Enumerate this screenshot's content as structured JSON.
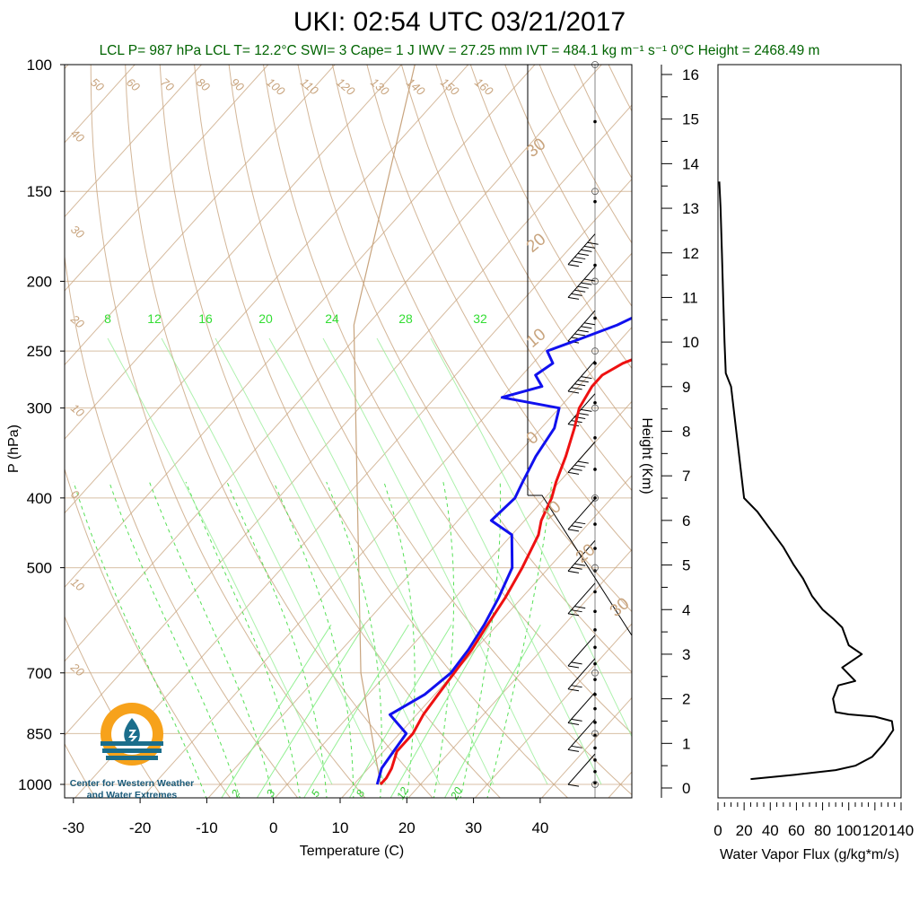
{
  "header": {
    "title": "UKI: 02:54 UTC 03/21/2017",
    "subtitle": "LCL P= 987 hPa  LCL T= 12.2°C  SWI= 3  Cape= 1 J  IWV = 27.25 mm  IVT = 484.1 kg m⁻¹ s⁻¹  0°C Height = 2468.49 m"
  },
  "logo": {
    "line1": "Center for Western Weather",
    "line2": "and Water Extremes"
  },
  "colors": {
    "temperature": "#ee1111",
    "dewpoint": "#1111ee",
    "isotherm_adiabat": "#c8a47e",
    "mixing_ratio": "#44dd44",
    "logo_orange": "#f7a21b",
    "logo_blue": "#1b6e8c"
  },
  "chart_data": [
    {
      "type": "line",
      "name": "skew-t",
      "xlabel": "Temperature (C)",
      "ylabel": "P (hPa)",
      "x_ticks": [
        -30,
        -20,
        -10,
        0,
        10,
        20,
        30,
        40
      ],
      "p_ticks": [
        100,
        150,
        200,
        250,
        300,
        400,
        500,
        700,
        850,
        1000
      ],
      "x_tick_labels": [
        "-30",
        "-20",
        "-10",
        "0",
        "10",
        "20",
        "30",
        "40"
      ],
      "p_tick_labels": [
        "100",
        "150",
        "200",
        "250",
        "300",
        "400",
        "500",
        "700",
        "850",
        "1000"
      ],
      "xlim": [
        -35,
        50
      ],
      "ylim": [
        1050,
        100
      ],
      "y_scale": "log",
      "mixing_ratio_labels": [
        "8",
        "12",
        "16",
        "20",
        "24",
        "28",
        "32"
      ],
      "mixing_ratio_low_labels": [
        "2",
        "3",
        "5",
        "8",
        "12",
        "20"
      ],
      "adiabat_labels_top": [
        "50",
        "60",
        "70",
        "80",
        "90",
        "100",
        "110",
        "120",
        "130",
        "140",
        "150",
        "160"
      ],
      "adiabat_labels_left": [
        "40",
        "30",
        "20",
        "10",
        "0",
        "10",
        "20"
      ],
      "adiabat_labels_right": [
        "30",
        "20",
        "10",
        "0",
        "10",
        "20",
        "30"
      ],
      "series": [
        {
          "name": "Temperature",
          "points": [
            [
              150,
              6.8
            ],
            [
              160,
              7.5
            ],
            [
              170,
              8.5
            ],
            [
              180,
              9.5
            ],
            [
              190,
              8.0
            ],
            [
              200,
              7.5
            ],
            [
              210,
              6.5
            ],
            [
              220,
              5.0
            ],
            [
              230,
              3.5
            ],
            [
              240,
              1.0
            ],
            [
              250,
              -3.5
            ],
            [
              260,
              -6.5
            ],
            [
              270,
              -8.0
            ],
            [
              280,
              -8.0
            ],
            [
              300,
              -7.0
            ],
            [
              320,
              -5.0
            ],
            [
              350,
              -2.5
            ],
            [
              380,
              -0.5
            ],
            [
              400,
              1.0
            ],
            [
              430,
              2.5
            ],
            [
              450,
              4.0
            ],
            [
              500,
              6.0
            ],
            [
              550,
              7.5
            ],
            [
              600,
              8.5
            ],
            [
              650,
              9.5
            ],
            [
              700,
              10.0
            ],
            [
              750,
              10.5
            ],
            [
              800,
              11.0
            ],
            [
              850,
              12.0
            ],
            [
              900,
              12.0
            ],
            [
              950,
              13.5
            ],
            [
              980,
              14.0
            ],
            [
              1000,
              14.0
            ]
          ]
        },
        {
          "name": "Dewpoint",
          "points": [
            [
              150,
              -10.0
            ],
            [
              160,
              -9.5
            ],
            [
              170,
              -8.5
            ],
            [
              180,
              -9.0
            ],
            [
              190,
              -9.5
            ],
            [
              200,
              -10.0
            ],
            [
              210,
              -9.5
            ],
            [
              220,
              -10.0
            ],
            [
              230,
              -12.5
            ],
            [
              240,
              -16.0
            ],
            [
              250,
              -19.5
            ],
            [
              260,
              -17.0
            ],
            [
              270,
              -18.0
            ],
            [
              280,
              -15.5
            ],
            [
              290,
              -20.0
            ],
            [
              300,
              -10.0
            ],
            [
              320,
              -8.0
            ],
            [
              350,
              -7.0
            ],
            [
              380,
              -5.5
            ],
            [
              400,
              -4.5
            ],
            [
              430,
              -5.0
            ],
            [
              450,
              0.0
            ],
            [
              500,
              4.5
            ],
            [
              550,
              6.5
            ],
            [
              600,
              8.0
            ],
            [
              650,
              9.0
            ],
            [
              700,
              9.5
            ],
            [
              750,
              8.5
            ],
            [
              800,
              6.0
            ],
            [
              850,
              11.0
            ],
            [
              900,
              11.5
            ],
            [
              950,
              12.0
            ],
            [
              1000,
              13.5
            ]
          ]
        }
      ],
      "wind_barbs": [
        {
          "p": 180,
          "speed_kt": 65
        },
        {
          "p": 200,
          "speed_kt": 60
        },
        {
          "p": 230,
          "speed_kt": 55
        },
        {
          "p": 270,
          "speed_kt": 50
        },
        {
          "p": 300,
          "speed_kt": 45
        },
        {
          "p": 350,
          "speed_kt": 40
        },
        {
          "p": 420,
          "speed_kt": 30
        },
        {
          "p": 480,
          "speed_kt": 25
        },
        {
          "p": 550,
          "speed_kt": 25
        },
        {
          "p": 650,
          "speed_kt": 20
        },
        {
          "p": 700,
          "speed_kt": 20
        },
        {
          "p": 780,
          "speed_kt": 20
        },
        {
          "p": 850,
          "speed_kt": 20
        },
        {
          "p": 950,
          "speed_kt": 10
        }
      ]
    },
    {
      "type": "line",
      "name": "water-vapor-flux-profile",
      "xlabel": "Water Vapor Flux (g/kg*m/s)",
      "ylabel": "Height (Km)",
      "x_ticks": [
        0,
        20,
        40,
        60,
        80,
        100,
        120,
        140
      ],
      "y_ticks": [
        0,
        1,
        2,
        3,
        4,
        5,
        6,
        7,
        8,
        9,
        10,
        11,
        12,
        13,
        14,
        15,
        16
      ],
      "x_tick_labels": [
        "0",
        "20",
        "40",
        "60",
        "80",
        "100",
        "120",
        "140"
      ],
      "y_tick_labels": [
        "0",
        "1",
        "2",
        "3",
        "4",
        "5",
        "6",
        "7",
        "8",
        "9",
        "10",
        "11",
        "12",
        "13",
        "14",
        "15",
        "16"
      ],
      "xlim": [
        0,
        140
      ],
      "ylim": [
        -0.3,
        16.5
      ],
      "series": [
        {
          "name": "Water Vapor Flux",
          "points": [
            [
              25,
              0.2
            ],
            [
              60,
              0.3
            ],
            [
              90,
              0.4
            ],
            [
              105,
              0.5
            ],
            [
              118,
              0.7
            ],
            [
              127,
              1.0
            ],
            [
              134,
              1.3
            ],
            [
              133,
              1.5
            ],
            [
              120,
              1.6
            ],
            [
              100,
              1.65
            ],
            [
              90,
              1.7
            ],
            [
              88,
              2.0
            ],
            [
              92,
              2.3
            ],
            [
              105,
              2.4
            ],
            [
              95,
              2.7
            ],
            [
              110,
              3.0
            ],
            [
              100,
              3.2
            ],
            [
              95,
              3.6
            ],
            [
              88,
              3.8
            ],
            [
              80,
              4.0
            ],
            [
              72,
              4.3
            ],
            [
              65,
              4.7
            ],
            [
              58,
              5.0
            ],
            [
              50,
              5.4
            ],
            [
              40,
              5.8
            ],
            [
              30,
              6.2
            ],
            [
              20,
              6.5
            ],
            [
              18,
              7.0
            ],
            [
              16,
              7.5
            ],
            [
              14,
              8.0
            ],
            [
              12,
              8.5
            ],
            [
              10,
              9.0
            ],
            [
              6,
              9.3
            ],
            [
              5,
              10.0
            ],
            [
              4,
              11.0
            ],
            [
              3,
              12.0
            ],
            [
              2,
              13.0
            ],
            [
              1,
              13.6
            ]
          ]
        }
      ]
    }
  ]
}
